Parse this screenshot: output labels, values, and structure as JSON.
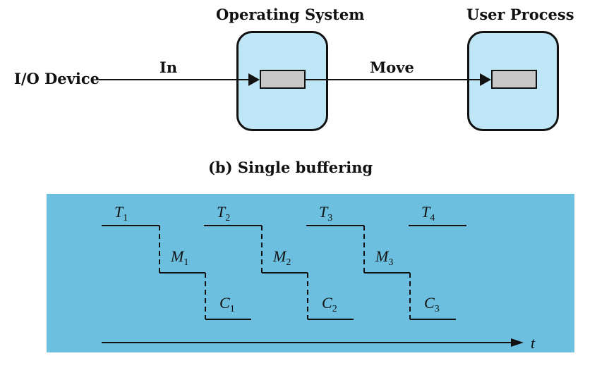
{
  "labels": {
    "io_device": "I/O Device",
    "in": "In",
    "move": "Move",
    "operating_system": "Operating System",
    "user_process": "User Process",
    "caption": "(b) Single buffering"
  },
  "timeline": {
    "axis_label": "t",
    "steps": [
      {
        "t": "T",
        "t_sub": "1",
        "m": "M",
        "m_sub": "1",
        "c": "C",
        "c_sub": "1"
      },
      {
        "t": "T",
        "t_sub": "2",
        "m": "M",
        "m_sub": "2",
        "c": "C",
        "c_sub": "2"
      },
      {
        "t": "T",
        "t_sub": "3",
        "m": "M",
        "m_sub": "3",
        "c": "C",
        "c_sub": "3"
      },
      {
        "t": "T",
        "t_sub": "4"
      }
    ]
  },
  "colors": {
    "box_fill": "#bfe6f7",
    "buffer_fill": "#c8c8c8",
    "timeline_bg": "#6cbfde"
  }
}
